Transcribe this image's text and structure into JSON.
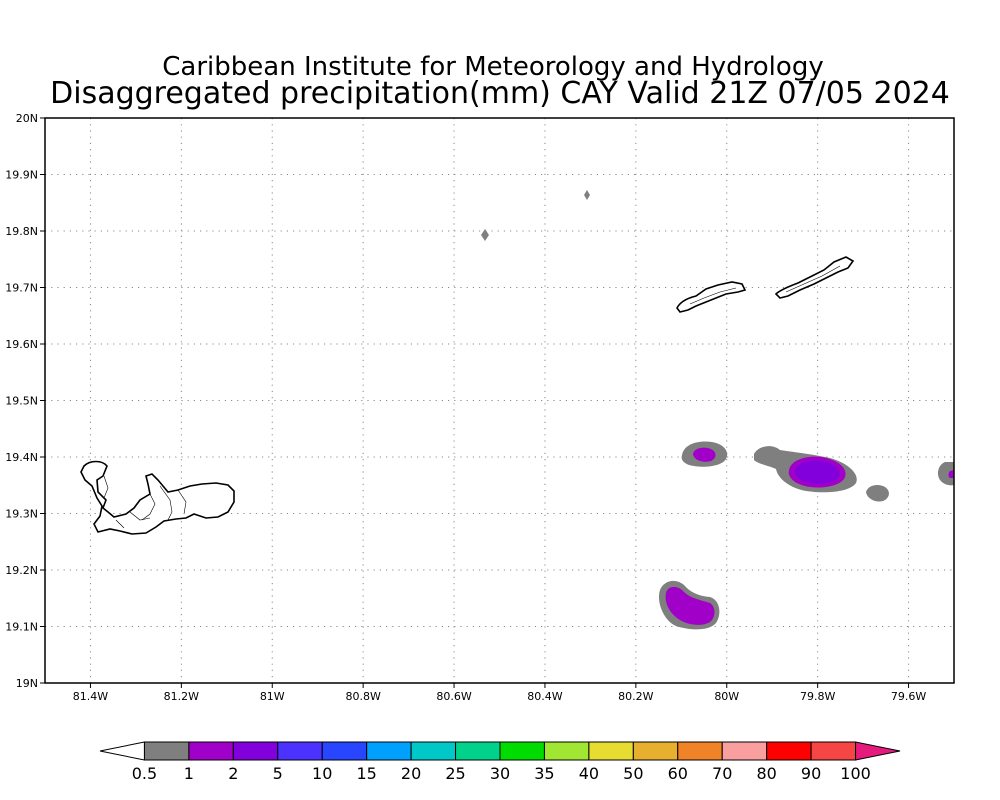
{
  "title": {
    "line1": "Caribbean Institute for Meteorology and Hydrology",
    "line2": "Disaggregated precipitation(mm) CAY Valid 21Z 07/05 2024"
  },
  "map": {
    "lon_range": [
      -81.5,
      -79.5
    ],
    "lat_range": [
      19.0,
      20.0
    ],
    "lon_ticks": [
      -81.4,
      -81.2,
      -81.0,
      -80.8,
      -80.6,
      -80.4,
      -80.2,
      -80.0,
      -79.8,
      -79.6
    ],
    "lon_tick_labels": [
      "81.4W",
      "81.2W",
      "81W",
      "80.8W",
      "80.6W",
      "80.4W",
      "80.2W",
      "80W",
      "79.8W",
      "79.6W"
    ],
    "lat_ticks": [
      19.0,
      19.1,
      19.2,
      19.3,
      19.4,
      19.5,
      19.6,
      19.7,
      19.8,
      19.9,
      20.0
    ],
    "lat_tick_labels": [
      "19N",
      "19.1N",
      "19.2N",
      "19.3N",
      "19.4N",
      "19.5N",
      "19.6N",
      "19.7N",
      "19.8N",
      "19.9N",
      "20N"
    ],
    "grid": true,
    "islands": [
      "Grand Cayman",
      "Little Cayman",
      "Cayman Brac"
    ],
    "precip_areas": [
      {
        "lon": -80.535,
        "lat": 19.793,
        "max_level": "0.5-1"
      },
      {
        "lon": -80.31,
        "lat": 19.866,
        "max_level": "0.5-1"
      },
      {
        "lon": -80.05,
        "lat": 19.405,
        "max_level": "1-2"
      },
      {
        "lon": -79.8,
        "lat": 19.375,
        "max_level": "1-2"
      },
      {
        "lon": -79.67,
        "lat": 19.335,
        "max_level": "0.5-1"
      },
      {
        "lon": -79.51,
        "lat": 19.372,
        "max_level": "1-2"
      },
      {
        "lon": -80.09,
        "lat": 19.13,
        "max_level": "1-2"
      }
    ]
  },
  "colorbar": {
    "labels": [
      "0.5",
      "1",
      "2",
      "5",
      "10",
      "15",
      "20",
      "25",
      "30",
      "35",
      "40",
      "50",
      "60",
      "70",
      "80",
      "90",
      "100"
    ],
    "colors": [
      "#ffffff",
      "#7f7f7f",
      "#a000c8",
      "#8200dc",
      "#4b32ff",
      "#2846ff",
      "#00a0ff",
      "#00c8c8",
      "#00d28c",
      "#00dc00",
      "#a0e632",
      "#e6dc32",
      "#e6af2d",
      "#f08228",
      "#fa9fa0",
      "#ff0000",
      "#f54545",
      "#e6197d"
    ]
  }
}
